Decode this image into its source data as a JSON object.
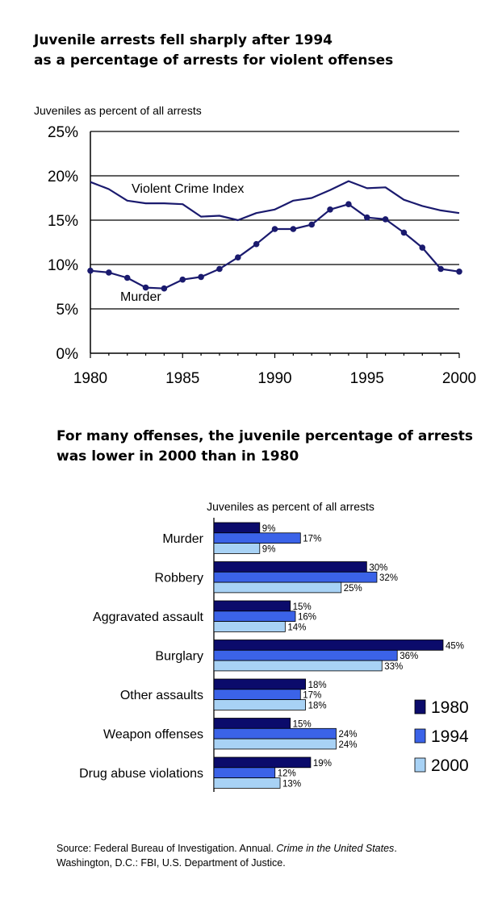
{
  "line_title": [
    "Juvenile arrests fell sharply after 1994",
    "as a percentage of arrests for violent offenses"
  ],
  "bar_title": [
    "For many offenses, the juvenile percentage of arrests",
    "was lower in 2000 than in 1980"
  ],
  "source": {
    "prefix": "Source: Federal Bureau of Investigation. Annual. ",
    "publication": "Crime in the United States",
    "suffix": ".",
    "line2": "Washington, D.C.: FBI, U.S. Department of Justice."
  },
  "colors": {
    "c1980": "#0b0b6b",
    "c1994": "#3b63e8",
    "c2000": "#a8d2f5",
    "line": "#1a1a6e"
  },
  "chart_data": [
    {
      "type": "line",
      "ylabel": "Juveniles as percent of all arrests",
      "xlim": [
        1980,
        2000
      ],
      "ylim": [
        0,
        25
      ],
      "x_ticks": [
        1980,
        1985,
        1990,
        1995,
        2000
      ],
      "y_ticks": [
        0,
        5,
        10,
        15,
        20,
        25
      ],
      "y_tick_labels": [
        "0%",
        "5%",
        "10%",
        "15%",
        "20%",
        "25%"
      ],
      "grid": "horizontal",
      "series": [
        {
          "name": "Violent Crime Index",
          "markers": false,
          "x": [
            1980,
            1981,
            1982,
            1983,
            1984,
            1985,
            1986,
            1987,
            1988,
            1989,
            1990,
            1991,
            1992,
            1993,
            1994,
            1995,
            1996,
            1997,
            1998,
            1999,
            2000
          ],
          "y": [
            19.3,
            18.5,
            17.2,
            16.9,
            16.9,
            16.8,
            15.4,
            15.5,
            15.0,
            15.8,
            16.2,
            17.2,
            17.5,
            18.4,
            19.4,
            18.6,
            18.7,
            17.3,
            16.6,
            16.1,
            15.8
          ]
        },
        {
          "name": "Murder",
          "markers": true,
          "x": [
            1980,
            1981,
            1982,
            1983,
            1984,
            1985,
            1986,
            1987,
            1988,
            1989,
            1990,
            1991,
            1992,
            1993,
            1994,
            1995,
            1996,
            1997,
            1998,
            1999,
            2000
          ],
          "y": [
            9.3,
            9.1,
            8.5,
            7.4,
            7.3,
            8.3,
            8.6,
            9.5,
            10.8,
            12.3,
            14.0,
            14.0,
            14.5,
            16.2,
            16.8,
            15.3,
            15.1,
            13.6,
            11.9,
            9.5,
            9.2
          ]
        }
      ]
    },
    {
      "type": "bar",
      "orientation": "horizontal",
      "ylabel": "Juveniles as percent of all arrests",
      "xlim": [
        0,
        45
      ],
      "categories": [
        "Murder",
        "Robbery",
        "Aggravated assault",
        "Burglary",
        "Other assaults",
        "Weapon offenses",
        "Drug abuse violations"
      ],
      "legend_position": "right",
      "series": [
        {
          "name": "1980",
          "values": [
            9,
            30,
            15,
            45,
            18,
            15,
            19
          ],
          "labels": [
            "9%",
            "30%",
            "15%",
            "45%",
            "18%",
            "15%",
            "19%"
          ]
        },
        {
          "name": "1994",
          "values": [
            17,
            32,
            16,
            36,
            17,
            24,
            12
          ],
          "labels": [
            "17%",
            "32%",
            "16%",
            "36%",
            "17%",
            "24%",
            "12%"
          ]
        },
        {
          "name": "2000",
          "values": [
            9,
            25,
            14,
            33,
            18,
            24,
            13
          ],
          "labels": [
            "9%",
            "25%",
            "14%",
            "33%",
            "18%",
            "24%",
            "13%"
          ]
        }
      ]
    }
  ]
}
